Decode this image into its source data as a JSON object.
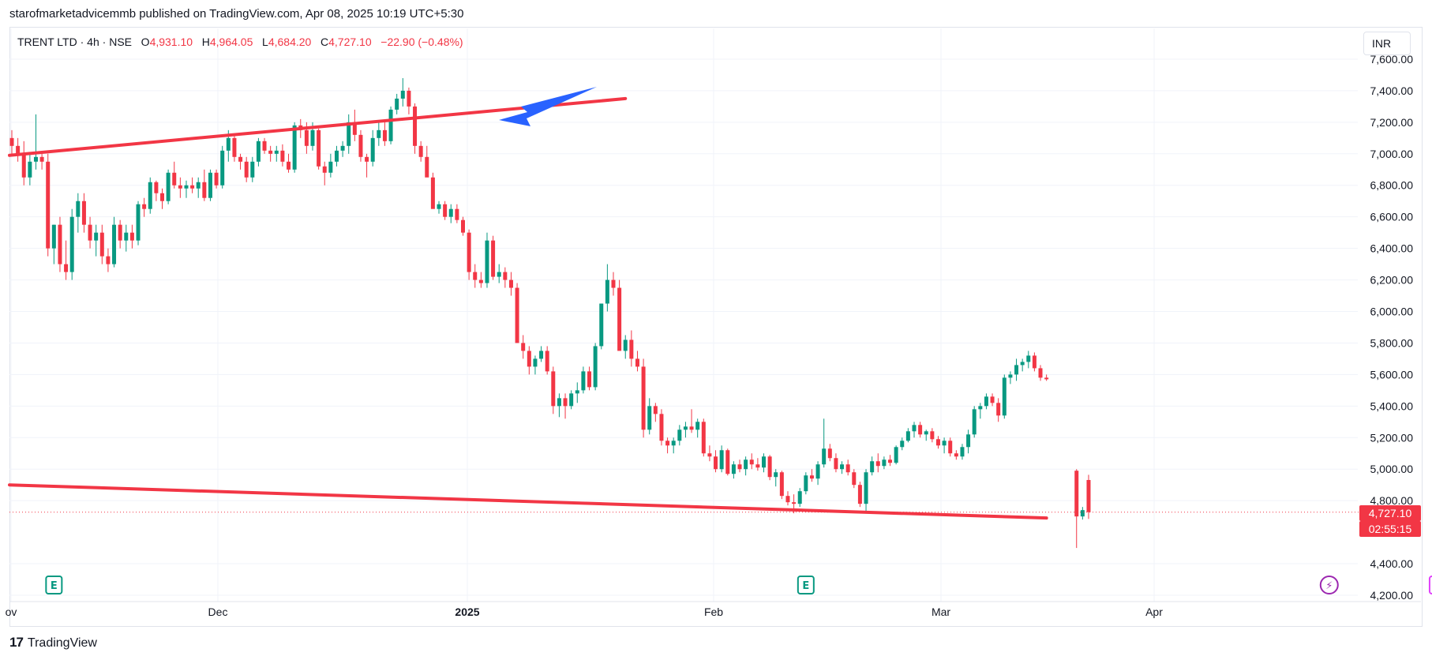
{
  "attribution": "starofmarketadvicemmb published on TradingView.com, Apr 08, 2025 10:19 UTC+5:30",
  "legend": {
    "symbol": "TRENT LTD",
    "interval": "4h",
    "exchange": "NSE",
    "open_label": "O",
    "open": "4,931.10",
    "high_label": "H",
    "high": "4,964.05",
    "low_label": "L",
    "low": "4,684.20",
    "close_label": "C",
    "close": "4,727.10",
    "change": "−22.90 (−0.48%)"
  },
  "currency": "INR",
  "last_price": "4,727.10",
  "countdown": "02:55:15",
  "footer_brand": "TradingView",
  "footer_logo": "17",
  "colors": {
    "up": "#089981",
    "down": "#f23645",
    "trendline": "#f23645",
    "arrow": "#2962ff",
    "earnings": "#089981",
    "future_earnings": "#e040fb",
    "dividend": "#9c27b0"
  },
  "chart_data": {
    "type": "candlestick",
    "symbol": "TRENT LTD",
    "interval": "4h",
    "exchange": "NSE",
    "currency": "INR",
    "ylim": [
      4200,
      7700
    ],
    "y_ticks": [
      "7,600.00",
      "7,400.00",
      "7,200.00",
      "7,000.00",
      "6,800.00",
      "6,600.00",
      "6,400.00",
      "6,200.00",
      "6,000.00",
      "5,800.00",
      "5,600.00",
      "5,400.00",
      "5,200.00",
      "5,000.00",
      "4,800.00",
      "4,400.00",
      "4,200.00"
    ],
    "x_ticks": [
      "ov",
      "Dec",
      "2025",
      "Feb",
      "Mar",
      "Apr"
    ],
    "candles": [
      [
        7100,
        7150,
        7000,
        7050
      ],
      [
        7050,
        7100,
        6950,
        7000
      ],
      [
        7000,
        7080,
        6800,
        6850
      ],
      [
        6850,
        7000,
        6800,
        6950
      ],
      [
        6950,
        7250,
        6900,
        6980
      ],
      [
        6980,
        7000,
        6900,
        6950
      ],
      [
        6950,
        7000,
        6350,
        6400
      ],
      [
        6400,
        6550,
        6300,
        6550
      ],
      [
        6550,
        6600,
        6250,
        6300
      ],
      [
        6300,
        6450,
        6200,
        6250
      ],
      [
        6250,
        6650,
        6200,
        6600
      ],
      [
        6600,
        6750,
        6500,
        6700
      ],
      [
        6700,
        6750,
        6500,
        6550
      ],
      [
        6550,
        6600,
        6400,
        6450
      ],
      [
        6450,
        6550,
        6350,
        6500
      ],
      [
        6500,
        6550,
        6300,
        6350
      ],
      [
        6350,
        6400,
        6250,
        6300
      ],
      [
        6300,
        6600,
        6280,
        6550
      ],
      [
        6550,
        6580,
        6400,
        6450
      ],
      [
        6450,
        6550,
        6380,
        6500
      ],
      [
        6500,
        6550,
        6400,
        6450
      ],
      [
        6450,
        6700,
        6420,
        6680
      ],
      [
        6680,
        6720,
        6600,
        6650
      ],
      [
        6650,
        6850,
        6620,
        6820
      ],
      [
        6820,
        6830,
        6700,
        6750
      ],
      [
        6750,
        6780,
        6650,
        6700
      ],
      [
        6700,
        6900,
        6680,
        6880
      ],
      [
        6880,
        6950,
        6780,
        6800
      ],
      [
        6800,
        6850,
        6720,
        6780
      ],
      [
        6780,
        6830,
        6720,
        6800
      ],
      [
        6800,
        6850,
        6750,
        6780
      ],
      [
        6780,
        6850,
        6720,
        6820
      ],
      [
        6820,
        6900,
        6700,
        6720
      ],
      [
        6720,
        6900,
        6700,
        6880
      ],
      [
        6880,
        6900,
        6780,
        6800
      ],
      [
        6800,
        7050,
        6780,
        7020
      ],
      [
        7020,
        7150,
        6950,
        7100
      ],
      [
        7100,
        7120,
        6950,
        6980
      ],
      [
        6980,
        7000,
        6900,
        6950
      ],
      [
        6950,
        6980,
        6820,
        6850
      ],
      [
        6850,
        6980,
        6820,
        6950
      ],
      [
        6950,
        7100,
        6920,
        7080
      ],
      [
        7080,
        7100,
        7000,
        7020
      ],
      [
        7020,
        7050,
        6950,
        7000
      ],
      [
        7000,
        7050,
        6950,
        7020
      ],
      [
        7020,
        7060,
        6920,
        6950
      ],
      [
        6950,
        7000,
        6880,
        6900
      ],
      [
        6900,
        7200,
        6880,
        7180
      ],
      [
        7180,
        7220,
        7100,
        7150
      ],
      [
        7150,
        7200,
        7000,
        7050
      ],
      [
        7050,
        7200,
        7020,
        7150
      ],
      [
        7150,
        7160,
        6900,
        6920
      ],
      [
        6920,
        6950,
        6800,
        6880
      ],
      [
        6880,
        7000,
        6850,
        6950
      ],
      [
        6950,
        7050,
        6920,
        7020
      ],
      [
        7020,
        7080,
        6980,
        7050
      ],
      [
        7050,
        7250,
        7000,
        7200
      ],
      [
        7200,
        7280,
        7080,
        7120
      ],
      [
        7120,
        7150,
        6950,
        6980
      ],
      [
        6980,
        7000,
        6850,
        6950
      ],
      [
        6950,
        7150,
        6920,
        7100
      ],
      [
        7100,
        7200,
        7050,
        7150
      ],
      [
        7150,
        7200,
        7050,
        7080
      ],
      [
        7080,
        7300,
        7060,
        7280
      ],
      [
        7280,
        7380,
        7250,
        7350
      ],
      [
        7350,
        7480,
        7300,
        7400
      ],
      [
        7400,
        7420,
        7250,
        7300
      ],
      [
        7300,
        7320,
        7000,
        7050
      ],
      [
        7050,
        7080,
        6950,
        6980
      ],
      [
        6980,
        7050,
        6900,
        6850
      ],
      [
        6850,
        6880,
        6700,
        6650
      ],
      [
        6650,
        6700,
        6620,
        6680
      ],
      [
        6680,
        6700,
        6580,
        6600
      ],
      [
        6600,
        6680,
        6560,
        6650
      ],
      [
        6650,
        6680,
        6560,
        6580
      ],
      [
        6580,
        6600,
        6480,
        6500
      ],
      [
        6500,
        6520,
        6200,
        6250
      ],
      [
        6250,
        6300,
        6150,
        6200
      ],
      [
        6200,
        6250,
        6150,
        6180
      ],
      [
        6180,
        6500,
        6150,
        6450
      ],
      [
        6450,
        6480,
        6200,
        6220
      ],
      [
        6220,
        6300,
        6180,
        6250
      ],
      [
        6250,
        6280,
        6150,
        6200
      ],
      [
        6200,
        6250,
        6100,
        6150
      ],
      [
        6150,
        6180,
        5800,
        5800
      ],
      [
        5800,
        5850,
        5700,
        5750
      ],
      [
        5750,
        5780,
        5600,
        5650
      ],
      [
        5650,
        5720,
        5600,
        5700
      ],
      [
        5700,
        5780,
        5680,
        5750
      ],
      [
        5750,
        5780,
        5600,
        5620
      ],
      [
        5620,
        5650,
        5350,
        5400
      ],
      [
        5400,
        5480,
        5330,
        5450
      ],
      [
        5450,
        5480,
        5320,
        5400
      ],
      [
        5400,
        5500,
        5380,
        5480
      ],
      [
        5480,
        5550,
        5420,
        5500
      ],
      [
        5500,
        5650,
        5480,
        5620
      ],
      [
        5620,
        5650,
        5500,
        5520
      ],
      [
        5520,
        5800,
        5500,
        5780
      ],
      [
        5780,
        6050,
        5760,
        6050
      ],
      [
        6050,
        6300,
        6000,
        6200
      ],
      [
        6200,
        6250,
        6100,
        6150
      ],
      [
        6150,
        6200,
        5800,
        5750
      ],
      [
        5750,
        5850,
        5700,
        5820
      ],
      [
        5820,
        5880,
        5650,
        5700
      ],
      [
        5700,
        5750,
        5620,
        5650
      ],
      [
        5650,
        5700,
        5200,
        5250
      ],
      [
        5250,
        5450,
        5220,
        5400
      ],
      [
        5400,
        5420,
        5300,
        5350
      ],
      [
        5350,
        5380,
        5150,
        5180
      ],
      [
        5180,
        5200,
        5100,
        5150
      ],
      [
        5150,
        5200,
        5100,
        5180
      ],
      [
        5180,
        5280,
        5150,
        5250
      ],
      [
        5250,
        5300,
        5200,
        5270
      ],
      [
        5270,
        5380,
        5230,
        5250
      ],
      [
        5250,
        5320,
        5200,
        5300
      ],
      [
        5300,
        5320,
        5080,
        5100
      ],
      [
        5100,
        5150,
        5050,
        5080
      ],
      [
        5080,
        5120,
        4980,
        5000
      ],
      [
        5000,
        5150,
        4980,
        5120
      ],
      [
        5120,
        5130,
        4960,
        4970
      ],
      [
        4970,
        5050,
        4940,
        5030
      ],
      [
        5030,
        5060,
        4980,
        5000
      ],
      [
        5000,
        5080,
        4960,
        5060
      ],
      [
        5060,
        5100,
        5000,
        5030
      ],
      [
        5030,
        5070,
        4990,
        5010
      ],
      [
        5010,
        5100,
        4980,
        5080
      ],
      [
        5080,
        5090,
        4930,
        4950
      ],
      [
        4950,
        5000,
        4890,
        4980
      ],
      [
        4980,
        4990,
        4810,
        4830
      ],
      [
        4830,
        4860,
        4770,
        4790
      ],
      [
        4790,
        4840,
        4720,
        4780
      ],
      [
        4780,
        4880,
        4760,
        4860
      ],
      [
        4860,
        4980,
        4840,
        4960
      ],
      [
        4960,
        5000,
        4920,
        4940
      ],
      [
        4940,
        5050,
        4900,
        5030
      ],
      [
        5030,
        5320,
        5010,
        5130
      ],
      [
        5130,
        5160,
        5050,
        5070
      ],
      [
        5070,
        5100,
        4980,
        5000
      ],
      [
        5000,
        5050,
        4970,
        5030
      ],
      [
        5030,
        5060,
        4960,
        4980
      ],
      [
        4980,
        5000,
        4880,
        4900
      ],
      [
        4900,
        4920,
        4760,
        4780
      ],
      [
        4780,
        5000,
        4730,
        4980
      ],
      [
        4980,
        5080,
        4960,
        5050
      ],
      [
        5050,
        5100,
        4980,
        5020
      ],
      [
        5020,
        5080,
        5000,
        5060
      ],
      [
        5060,
        5090,
        5020,
        5040
      ],
      [
        5040,
        5150,
        5030,
        5140
      ],
      [
        5140,
        5200,
        5120,
        5180
      ],
      [
        5180,
        5260,
        5170,
        5240
      ],
      [
        5240,
        5300,
        5200,
        5280
      ],
      [
        5280,
        5300,
        5200,
        5220
      ],
      [
        5220,
        5250,
        5180,
        5240
      ],
      [
        5240,
        5260,
        5170,
        5190
      ],
      [
        5190,
        5210,
        5130,
        5150
      ],
      [
        5150,
        5200,
        5100,
        5180
      ],
      [
        5180,
        5200,
        5080,
        5100
      ],
      [
        5100,
        5120,
        5060,
        5080
      ],
      [
        5080,
        5160,
        5060,
        5140
      ],
      [
        5140,
        5250,
        5100,
        5220
      ],
      [
        5220,
        5400,
        5200,
        5380
      ],
      [
        5380,
        5420,
        5320,
        5400
      ],
      [
        5400,
        5480,
        5380,
        5460
      ],
      [
        5460,
        5480,
        5400,
        5420
      ],
      [
        5420,
        5450,
        5300,
        5340
      ],
      [
        5340,
        5600,
        5320,
        5580
      ],
      [
        5580,
        5620,
        5540,
        5600
      ],
      [
        5600,
        5700,
        5560,
        5660
      ],
      [
        5660,
        5700,
        5620,
        5680
      ],
      [
        5680,
        5750,
        5640,
        5720
      ],
      [
        5720,
        5740,
        5620,
        5640
      ],
      [
        5640,
        5660,
        5560,
        5580
      ],
      [
        5580,
        5600,
        5560,
        5570
      ],
      null,
      null,
      null,
      null,
      [
        4990,
        5000,
        4500,
        4700
      ],
      [
        4700,
        4760,
        4680,
        4740
      ],
      [
        4931.1,
        4964.05,
        4684.2,
        4727.1
      ]
    ],
    "trendlines": [
      {
        "from_index": 0,
        "from_price": 6990,
        "to_index": 102,
        "to_price": 7350
      },
      {
        "from_index": 0,
        "from_price": 4900,
        "to_index": 172,
        "to_price": 4690
      }
    ],
    "event_markers": [
      {
        "type": "earnings",
        "label": "E",
        "index": 7
      },
      {
        "type": "earnings",
        "label": "E",
        "index": 132
      },
      {
        "type": "dividend",
        "label": "⚡",
        "index": 219
      },
      {
        "type": "future_earnings",
        "label": "E",
        "index": 237
      }
    ],
    "annotations": [
      {
        "type": "arrow",
        "color": "#2962ff",
        "description": "arrow pointing at trendline touch"
      }
    ]
  }
}
